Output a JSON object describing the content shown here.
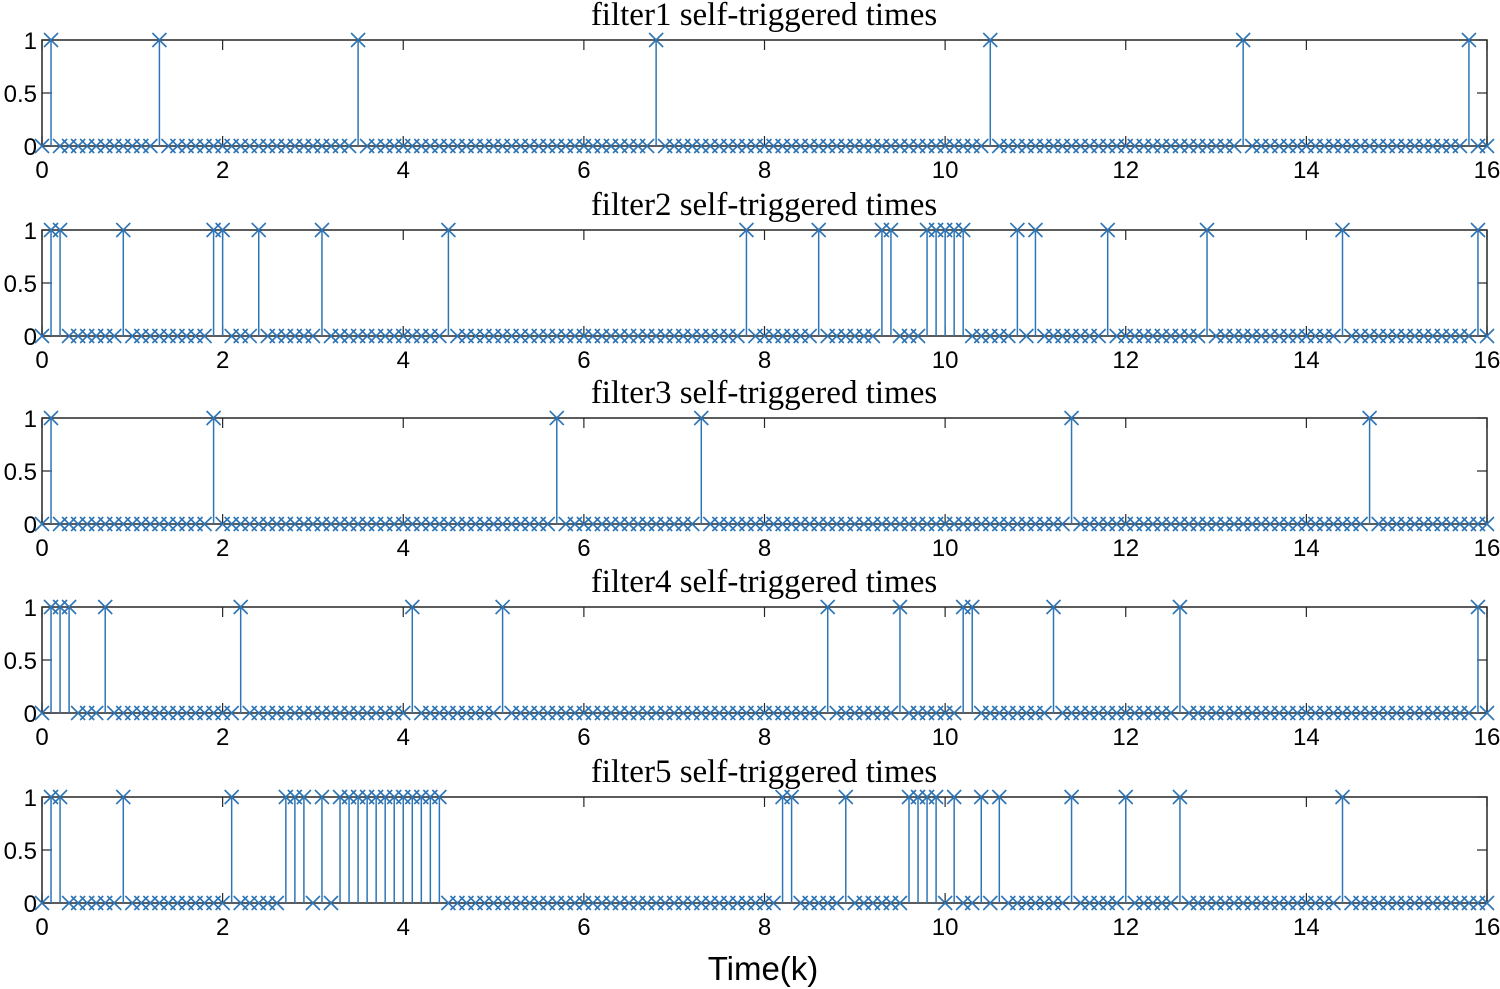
{
  "chart_data": [
    {
      "type": "stem",
      "title": "filter1 self-triggered times",
      "xlim": [
        0,
        16
      ],
      "ylim": [
        0,
        1
      ],
      "xticks": [
        "0",
        "2",
        "4",
        "6",
        "8",
        "10",
        "12",
        "14",
        "16"
      ],
      "yticks": [
        "0",
        "0.5",
        "1"
      ],
      "marker": "x",
      "color": "#2e75b6",
      "sample_step": 0.1,
      "trigger_times": [
        0.1,
        1.3,
        3.5,
        6.8,
        10.5,
        13.3,
        15.8
      ]
    },
    {
      "type": "stem",
      "title": "filter2 self-triggered times",
      "xlim": [
        0,
        16
      ],
      "ylim": [
        0,
        1
      ],
      "xticks": [
        "0",
        "2",
        "4",
        "6",
        "8",
        "10",
        "12",
        "14",
        "16"
      ],
      "yticks": [
        "0",
        "0.5",
        "1"
      ],
      "marker": "x",
      "color": "#2e75b6",
      "sample_step": 0.1,
      "trigger_times": [
        0.1,
        0.2,
        0.9,
        1.9,
        2.0,
        2.4,
        3.1,
        4.5,
        7.8,
        8.6,
        9.3,
        9.4,
        9.8,
        9.9,
        10.0,
        10.1,
        10.2,
        10.8,
        11.0,
        11.8,
        12.9,
        14.4,
        15.9
      ]
    },
    {
      "type": "stem",
      "title": "filter3 self-triggered times",
      "xlim": [
        0,
        16
      ],
      "ylim": [
        0,
        1
      ],
      "xticks": [
        "0",
        "2",
        "4",
        "6",
        "8",
        "10",
        "12",
        "14",
        "16"
      ],
      "yticks": [
        "0",
        "0.5",
        "1"
      ],
      "marker": "x",
      "color": "#2e75b6",
      "sample_step": 0.1,
      "trigger_times": [
        0.1,
        1.9,
        5.7,
        7.3,
        11.4,
        14.7
      ]
    },
    {
      "type": "stem",
      "title": "filter4 self-triggered times",
      "xlim": [
        0,
        16
      ],
      "ylim": [
        0,
        1
      ],
      "xticks": [
        "0",
        "2",
        "4",
        "6",
        "8",
        "10",
        "12",
        "14",
        "16"
      ],
      "yticks": [
        "0",
        "0.5",
        "1"
      ],
      "marker": "x",
      "color": "#2e75b6",
      "sample_step": 0.1,
      "trigger_times": [
        0.1,
        0.2,
        0.3,
        0.7,
        2.2,
        4.1,
        5.1,
        8.7,
        9.5,
        10.2,
        10.3,
        11.2,
        12.6,
        15.9
      ]
    },
    {
      "type": "stem",
      "title": "filter5 self-triggered times",
      "xlim": [
        0,
        16
      ],
      "ylim": [
        0,
        1
      ],
      "xticks": [
        "0",
        "2",
        "4",
        "6",
        "8",
        "10",
        "12",
        "14",
        "16"
      ],
      "yticks": [
        "0",
        "0.5",
        "1"
      ],
      "marker": "x",
      "color": "#2e75b6",
      "sample_step": 0.1,
      "trigger_times": [
        0.1,
        0.2,
        0.9,
        2.1,
        2.7,
        2.8,
        2.9,
        3.1,
        3.3,
        3.4,
        3.5,
        3.6,
        3.7,
        3.8,
        3.9,
        4.0,
        4.1,
        4.2,
        4.3,
        4.4,
        8.2,
        8.3,
        8.9,
        9.6,
        9.7,
        9.8,
        9.9,
        10.1,
        10.4,
        10.6,
        11.4,
        12.0,
        12.6,
        14.4
      ]
    }
  ],
  "figure": {
    "xlabel": "Time(k)"
  }
}
